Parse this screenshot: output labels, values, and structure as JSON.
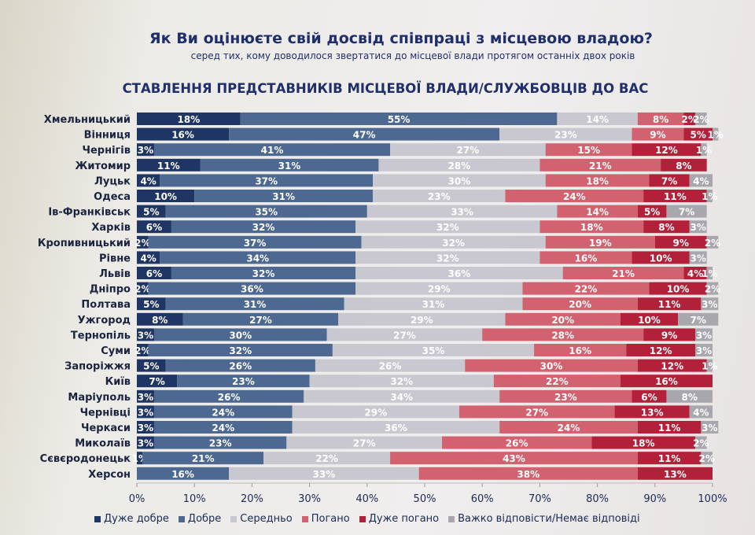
{
  "title": "Як Ви оцінюєте свій досвід співпраці з місцевою владою?",
  "subtitle": "серед тих, кому доводилося звертатися до місцевої влади протягом останніх двох років",
  "heading": "СТАВЛЕННЯ ПРЕДСТАВНИКІВ МІСЦЕВОЇ ВЛАДИ/СЛУЖБОВЦІВ ДО ВАС",
  "chart_data": {
    "type": "bar",
    "orientation": "horizontal-stacked",
    "categories": [
      "Хмельницький",
      "Вінниця",
      "Чернігів",
      "Житомир",
      "Луцьк",
      "Одеса",
      "Ів-Франківськ",
      "Харків",
      "Кропивницький",
      "Рівне",
      "Львів",
      "Дніпро",
      "Полтава",
      "Ужгород",
      "Тернопіль",
      "Суми",
      "Запоріжжя",
      "Київ",
      "Маріуполь",
      "Чернівці",
      "Черкаси",
      "Миколаїв",
      "Сєвєродонецьк",
      "Херсон"
    ],
    "series": [
      {
        "name": "Дуже добре",
        "color": "#1f3563",
        "values": [
          18,
          16,
          3,
          11,
          4,
          10,
          5,
          6,
          2,
          4,
          6,
          2,
          5,
          8,
          3,
          2,
          5,
          7,
          3,
          3,
          3,
          3,
          1,
          0
        ]
      },
      {
        "name": "Добре",
        "color": "#4d6891",
        "values": [
          55,
          47,
          41,
          31,
          37,
          31,
          35,
          32,
          37,
          34,
          32,
          36,
          31,
          27,
          30,
          32,
          26,
          23,
          26,
          24,
          24,
          23,
          21,
          16
        ]
      },
      {
        "name": "Середньо",
        "color": "#c9c8d0",
        "values": [
          14,
          23,
          27,
          28,
          30,
          23,
          33,
          32,
          32,
          32,
          36,
          29,
          31,
          29,
          27,
          35,
          26,
          32,
          34,
          29,
          36,
          27,
          22,
          33
        ]
      },
      {
        "name": "Погано",
        "color": "#d2626f",
        "values": [
          8,
          9,
          15,
          21,
          18,
          24,
          14,
          18,
          19,
          16,
          21,
          22,
          20,
          20,
          28,
          16,
          30,
          22,
          23,
          27,
          24,
          26,
          43,
          38
        ]
      },
      {
        "name": "Дуже погано",
        "color": "#b3203a",
        "values": [
          2,
          5,
          12,
          8,
          7,
          11,
          5,
          8,
          9,
          10,
          4,
          10,
          11,
          10,
          9,
          12,
          12,
          16,
          6,
          13,
          11,
          18,
          11,
          13
        ]
      },
      {
        "name": "Важко відповісти/Немає відповіді",
        "color": "#a8a7ad",
        "values": [
          2,
          1,
          1,
          0,
          4,
          1,
          7,
          3,
          2,
          3,
          1,
          2,
          3,
          7,
          3,
          3,
          1,
          0,
          8,
          4,
          3,
          2,
          2,
          0
        ]
      }
    ],
    "xlim": [
      0,
      100
    ],
    "xticks": [
      "0%",
      "10%",
      "20%",
      "30%",
      "40%",
      "50%",
      "60%",
      "70%",
      "80%",
      "90%",
      "100%"
    ],
    "legend": "bottom",
    "grid": false
  }
}
